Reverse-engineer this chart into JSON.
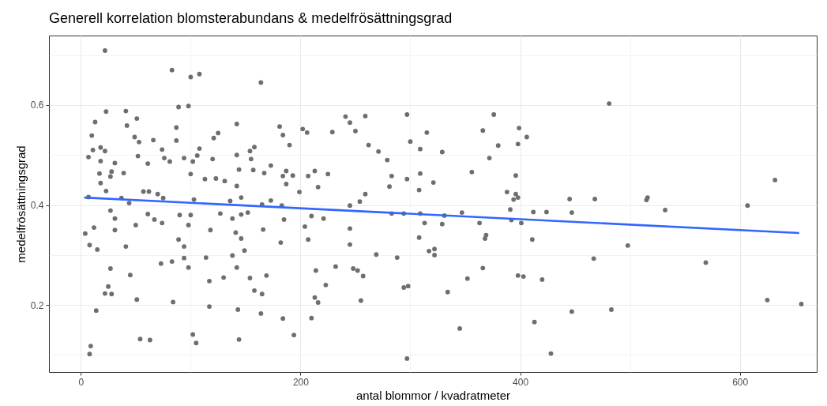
{
  "chart_data": {
    "type": "scatter",
    "title": "Generell korrelation blomsterabundans & medelfrösättningsgrad",
    "xlabel": "antal blommor / kvadratmeter",
    "ylabel": "medelfrösättningsgrad",
    "grid": true,
    "marker": "circle",
    "xlim": [
      -29,
      670
    ],
    "xticks": [
      0,
      {
        "value": 100,
        "label": null
      },
      200,
      {
        "value": 300,
        "label": null
      },
      400,
      {
        "value": 500,
        "label": null
      },
      600
    ],
    "ylim": [
      0.066,
      0.739
    ],
    "yticks": [
      {
        "value": 0.1,
        "label": null
      },
      0.2,
      {
        "value": 0.3,
        "label": null
      },
      0.4,
      {
        "value": 0.5,
        "label": null
      },
      0.6,
      {
        "value": 0.7,
        "label": null
      }
    ],
    "series": [
      {
        "color": "#6e6e6e",
        "x": [
          22,
          83,
          100,
          108,
          164,
          23,
          41,
          98,
          89,
          13,
          42,
          51,
          10,
          49,
          142,
          87,
          87,
          66,
          53,
          181,
          184,
          190,
          121,
          125,
          11,
          18,
          22,
          7,
          18,
          31,
          17,
          28,
          27,
          18,
          23,
          39,
          52,
          61,
          74,
          76,
          81,
          94,
          102,
          100,
          106,
          108,
          120,
          113,
          123,
          131,
          142,
          144,
          154,
          158,
          155,
          157,
          167,
          173,
          184,
          187,
          193,
          187,
          142,
          57,
          62,
          70,
          75,
          37,
          7,
          44,
          103,
          146,
          136,
          173,
          165,
          183,
          199,
          27,
          31,
          31,
          12,
          4,
          61,
          67,
          74,
          50,
          90,
          100,
          98,
          118,
          127,
          138,
          146,
          152,
          141,
          146,
          149,
          166,
          185,
          182,
          8,
          15,
          41,
          89,
          94,
          94,
          83,
          73,
          98,
          114,
          138,
          142,
          27,
          45,
          25,
          22,
          28,
          51,
          84,
          117,
          130,
          154,
          169,
          158,
          165,
          14,
          117,
          143,
          164,
          184,
          54,
          63,
          102,
          105,
          144,
          194,
          9,
          8,
          202,
          206,
          241,
          245,
          259,
          250,
          229,
          262,
          271,
          297,
          300,
          315,
          309,
          329,
          279,
          213,
          207,
          225,
          216,
          283,
          281,
          297,
          309,
          308,
          321,
          259,
          254,
          245,
          210,
          221,
          204,
          207,
          245,
          245,
          283,
          294,
          309,
          313,
          329,
          331,
          347,
          308,
          317,
          322,
          322,
          356,
          366,
          376,
          380,
          372,
          399,
          398,
          406,
          396,
          388,
          396,
          398,
          394,
          391,
          392,
          401,
          363,
          369,
          368,
          411,
          412,
          424,
          269,
          288,
          214,
          232,
          248,
          252,
          257,
          223,
          213,
          216,
          255,
          210,
          294,
          298,
          334,
          352,
          366,
          398,
          403,
          420,
          345,
          413,
          428,
          297,
          481,
          445,
          468,
          447,
          515,
          516,
          532,
          498,
          467,
          569,
          447,
          483,
          607,
          632,
          625,
          656
        ],
        "values": [
          0.709,
          0.67,
          0.656,
          0.662,
          0.645,
          0.587,
          0.588,
          0.598,
          0.596,
          0.566,
          0.559,
          0.573,
          0.539,
          0.536,
          0.562,
          0.555,
          0.529,
          0.53,
          0.526,
          0.557,
          0.54,
          0.52,
          0.534,
          0.544,
          0.51,
          0.515,
          0.508,
          0.496,
          0.488,
          0.484,
          0.463,
          0.467,
          0.457,
          0.444,
          0.428,
          0.464,
          0.498,
          0.483,
          0.511,
          0.494,
          0.487,
          0.494,
          0.487,
          0.462,
          0.499,
          0.513,
          0.492,
          0.452,
          0.453,
          0.448,
          0.5,
          0.471,
          0.508,
          0.516,
          0.492,
          0.47,
          0.464,
          0.479,
          0.458,
          0.468,
          0.459,
          0.442,
          0.438,
          0.427,
          0.427,
          0.422,
          0.414,
          0.414,
          0.416,
          0.404,
          0.411,
          0.415,
          0.408,
          0.409,
          0.401,
          0.399,
          0.426,
          0.389,
          0.373,
          0.35,
          0.355,
          0.343,
          0.382,
          0.371,
          0.364,
          0.36,
          0.38,
          0.38,
          0.36,
          0.35,
          0.383,
          0.373,
          0.381,
          0.385,
          0.345,
          0.333,
          0.309,
          0.351,
          0.371,
          0.325,
          0.32,
          0.311,
          0.317,
          0.331,
          0.317,
          0.294,
          0.287,
          0.283,
          0.275,
          0.295,
          0.299,
          0.275,
          0.273,
          0.26,
          0.237,
          0.223,
          0.222,
          0.211,
          0.206,
          0.248,
          0.255,
          0.254,
          0.259,
          0.229,
          0.222,
          0.189,
          0.197,
          0.191,
          0.183,
          0.173,
          0.132,
          0.13,
          0.141,
          0.124,
          0.131,
          0.14,
          0.118,
          0.102,
          0.552,
          0.545,
          0.577,
          0.565,
          0.578,
          0.548,
          0.546,
          0.52,
          0.507,
          0.581,
          0.527,
          0.545,
          0.512,
          0.506,
          0.49,
          0.468,
          0.458,
          0.462,
          0.436,
          0.458,
          0.437,
          0.452,
          0.463,
          0.43,
          0.445,
          0.422,
          0.407,
          0.399,
          0.378,
          0.373,
          0.357,
          0.331,
          0.353,
          0.321,
          0.383,
          0.383,
          0.383,
          0.364,
          0.362,
          0.379,
          0.385,
          0.335,
          0.308,
          0.312,
          0.3,
          0.466,
          0.549,
          0.581,
          0.519,
          0.494,
          0.554,
          0.522,
          0.536,
          0.459,
          0.426,
          0.422,
          0.415,
          0.411,
          0.391,
          0.37,
          0.364,
          0.364,
          0.34,
          0.333,
          0.331,
          0.386,
          0.386,
          0.301,
          0.295,
          0.269,
          0.277,
          0.273,
          0.269,
          0.258,
          0.24,
          0.215,
          0.205,
          0.209,
          0.174,
          0.235,
          0.238,
          0.226,
          0.253,
          0.274,
          0.259,
          0.257,
          0.251,
          0.153,
          0.166,
          0.103,
          0.093,
          0.603,
          0.412,
          0.412,
          0.385,
          0.41,
          0.415,
          0.39,
          0.319,
          0.293,
          0.285,
          0.187,
          0.191,
          0.399,
          0.45,
          0.21,
          0.202
        ]
      },
      {
        "type": "line",
        "marker": "none",
        "color": "#3366ff",
        "x": [
          3,
          654
        ],
        "values": [
          0.415,
          0.344
        ]
      }
    ]
  }
}
